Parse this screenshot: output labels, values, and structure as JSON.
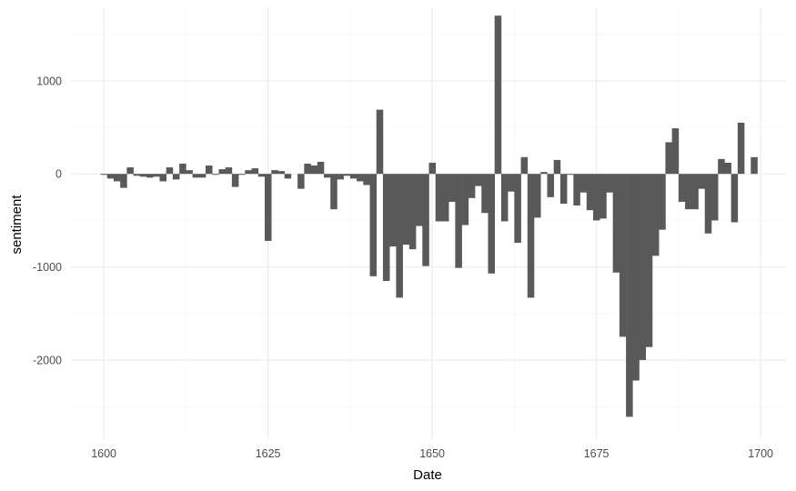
{
  "chart_data": {
    "type": "bar",
    "xlabel": "Date",
    "ylabel": "sentiment",
    "xlim": [
      1595,
      1704
    ],
    "ylim": [
      -2850,
      1790
    ],
    "x_ticks": [
      1600,
      1625,
      1650,
      1675,
      1700
    ],
    "y_ticks": [
      -2000,
      -1000,
      0,
      1000
    ],
    "grid": true,
    "bar_color": "#595959",
    "x": [
      1600,
      1601,
      1602,
      1603,
      1604,
      1605,
      1606,
      1607,
      1608,
      1609,
      1610,
      1611,
      1612,
      1613,
      1614,
      1615,
      1616,
      1617,
      1618,
      1619,
      1620,
      1621,
      1622,
      1623,
      1624,
      1625,
      1626,
      1627,
      1628,
      1629,
      1630,
      1631,
      1632,
      1633,
      1634,
      1635,
      1636,
      1637,
      1638,
      1639,
      1640,
      1641,
      1642,
      1643,
      1644,
      1645,
      1646,
      1647,
      1648,
      1649,
      1650,
      1651,
      1652,
      1653,
      1654,
      1655,
      1656,
      1657,
      1658,
      1659,
      1660,
      1661,
      1662,
      1663,
      1664,
      1665,
      1666,
      1667,
      1668,
      1669,
      1670,
      1671,
      1672,
      1673,
      1674,
      1675,
      1676,
      1677,
      1678,
      1679,
      1680,
      1681,
      1682,
      1683,
      1684,
      1685,
      1686,
      1687,
      1688,
      1689,
      1690,
      1691,
      1692,
      1693,
      1694,
      1695,
      1696,
      1697,
      1698,
      1699
    ],
    "values": [
      -10,
      -50,
      -80,
      -150,
      70,
      -20,
      -30,
      -40,
      -30,
      -80,
      70,
      -60,
      110,
      40,
      -40,
      -40,
      90,
      -10,
      50,
      70,
      -140,
      -10,
      40,
      60,
      -30,
      -720,
      40,
      30,
      -50,
      0,
      -160,
      110,
      90,
      130,
      -40,
      -380,
      -60,
      -20,
      -50,
      -80,
      -120,
      -1100,
      690,
      -1150,
      -780,
      -1330,
      -760,
      -810,
      -560,
      -990,
      120,
      -510,
      -510,
      -300,
      -1010,
      -550,
      -260,
      -130,
      -420,
      -1070,
      1700,
      -510,
      -190,
      -740,
      180,
      -1330,
      -470,
      20,
      -250,
      150,
      -320,
      -10,
      -340,
      -200,
      -390,
      -500,
      -480,
      -200,
      -1060,
      -1750,
      -2610,
      -2220,
      -2000,
      -1860,
      -880,
      -600,
      340,
      490,
      -300,
      -380,
      -380,
      -160,
      -640,
      -500,
      160,
      120,
      -520,
      550,
      0,
      180
    ]
  }
}
